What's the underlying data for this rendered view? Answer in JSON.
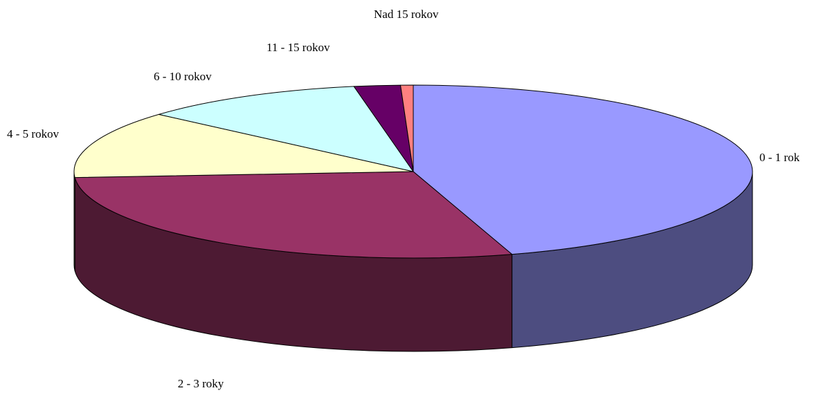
{
  "chart_data": {
    "type": "pie3d",
    "categories": [
      "0 - 1 rok",
      "2 - 3 roky",
      "4 - 5 rokov",
      "6 - 10 rokov",
      "11 - 15 rokov",
      "Nad 15 rokov"
    ],
    "values": [
      45.3,
      28.6,
      12.6,
      10.7,
      2.2,
      0.6
    ],
    "colors": [
      "#9999ff",
      "#993366",
      "#ffffcc",
      "#ccffff",
      "#660066",
      "#ff8080"
    ]
  }
}
